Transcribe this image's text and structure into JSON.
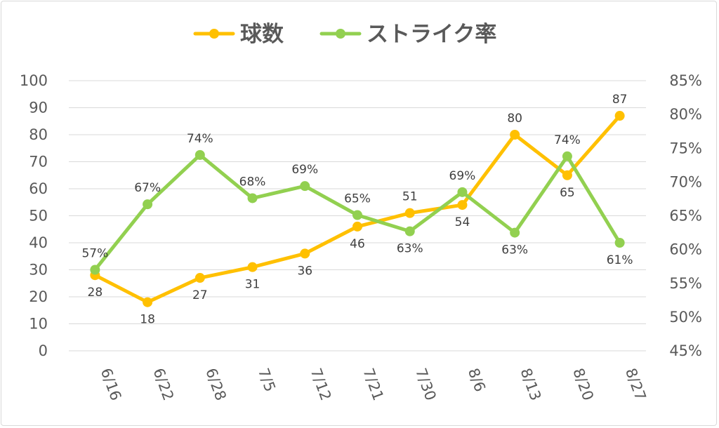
{
  "chart_data": {
    "type": "line",
    "title": "",
    "categories": [
      "6/16",
      "6/22",
      "6/28",
      "7/5",
      "7/12",
      "7/21",
      "7/30",
      "8/6",
      "8/13",
      "8/20",
      "8/27"
    ],
    "legend_position": "top",
    "grid": true,
    "series": [
      {
        "name": "球数",
        "axis": "left",
        "color": "#FFC000",
        "values": [
          28,
          18,
          27,
          31,
          36,
          46,
          51,
          54,
          80,
          65,
          87
        ],
        "labels": [
          "28",
          "18",
          "27",
          "31",
          "36",
          "46",
          "51",
          "54",
          "80",
          "65",
          "87"
        ]
      },
      {
        "name": "ストライク率",
        "axis": "right",
        "color": "#92D050",
        "values": [
          0.57,
          0.667,
          0.74,
          0.676,
          0.694,
          0.651,
          0.627,
          0.685,
          0.625,
          0.738,
          0.61
        ],
        "labels": [
          "57%",
          "67%",
          "74%",
          "68%",
          "69%",
          "65%",
          "63%",
          "69%",
          "63%",
          "74%",
          "61%"
        ]
      }
    ],
    "y_left": {
      "min": 0,
      "max": 100,
      "ticks": [
        "0",
        "10",
        "20",
        "30",
        "40",
        "50",
        "60",
        "70",
        "80",
        "90",
        "100"
      ]
    },
    "y_right": {
      "min": 0.45,
      "max": 0.85,
      "ticks": [
        "45%",
        "50%",
        "55%",
        "60%",
        "65%",
        "70%",
        "75%",
        "80%",
        "85%"
      ]
    }
  }
}
